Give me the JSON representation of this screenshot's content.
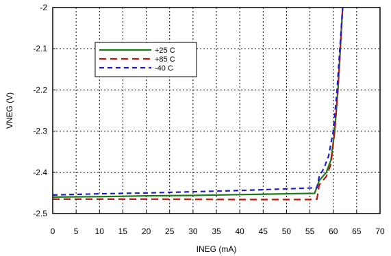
{
  "chart_data": {
    "type": "line",
    "title": "",
    "xlabel": "INEG (mA)",
    "ylabel": "VNEG (V)",
    "xlim": [
      0,
      70
    ],
    "ylim": [
      -2.5,
      -2.0
    ],
    "xticks": [
      0,
      5,
      10,
      15,
      20,
      25,
      30,
      35,
      40,
      45,
      50,
      55,
      60,
      65,
      70
    ],
    "yticks": [
      -2.5,
      -2.4,
      -2.3,
      -2.2,
      -2.1,
      -2.0
    ],
    "xtick_labels": [
      "0",
      "5",
      "10",
      "15",
      "20",
      "25",
      "30",
      "35",
      "40",
      "45",
      "50",
      "55",
      "60",
      "65",
      "70"
    ],
    "ytick_labels": [
      "-2.5",
      "-2.4",
      "-2.3",
      "-2.2",
      "-2.1",
      "-2"
    ],
    "grid": true,
    "legend_position": "top-left",
    "series": [
      {
        "name": "+25 C",
        "color": "#1a7a1a",
        "dash": "solid",
        "points": [
          [
            0,
            -2.46
          ],
          [
            10,
            -2.459
          ],
          [
            20,
            -2.457
          ],
          [
            30,
            -2.456
          ],
          [
            40,
            -2.454
          ],
          [
            50,
            -2.452
          ],
          [
            56,
            -2.451
          ],
          [
            57,
            -2.42
          ],
          [
            58.5,
            -2.4
          ],
          [
            59.5,
            -2.37
          ],
          [
            60.3,
            -2.3
          ],
          [
            61,
            -2.2
          ],
          [
            61.5,
            -2.1
          ],
          [
            62,
            -2.0
          ]
        ]
      },
      {
        "name": "+85 C",
        "color": "#c0180c",
        "dash": "long",
        "points": [
          [
            0,
            -2.465
          ],
          [
            5,
            -2.465
          ],
          [
            20,
            -2.465
          ],
          [
            40,
            -2.466
          ],
          [
            55,
            -2.466
          ],
          [
            56.5,
            -2.465
          ],
          [
            57,
            -2.43
          ],
          [
            58.5,
            -2.41
          ],
          [
            59.5,
            -2.38
          ],
          [
            60.3,
            -2.3
          ],
          [
            61,
            -2.2
          ],
          [
            61.5,
            -2.1
          ],
          [
            62,
            -2.0
          ]
        ]
      },
      {
        "name": "-40 C",
        "color": "#1a1adb",
        "dash": "short",
        "points": [
          [
            0,
            -2.455
          ],
          [
            10,
            -2.452
          ],
          [
            20,
            -2.45
          ],
          [
            30,
            -2.447
          ],
          [
            40,
            -2.444
          ],
          [
            50,
            -2.44
          ],
          [
            55,
            -2.438
          ],
          [
            56.5,
            -2.437
          ],
          [
            57,
            -2.41
          ],
          [
            58,
            -2.39
          ],
          [
            59,
            -2.36
          ],
          [
            60,
            -2.3
          ],
          [
            60.8,
            -2.2
          ],
          [
            61.4,
            -2.1
          ],
          [
            62,
            -2.0
          ]
        ]
      }
    ]
  }
}
